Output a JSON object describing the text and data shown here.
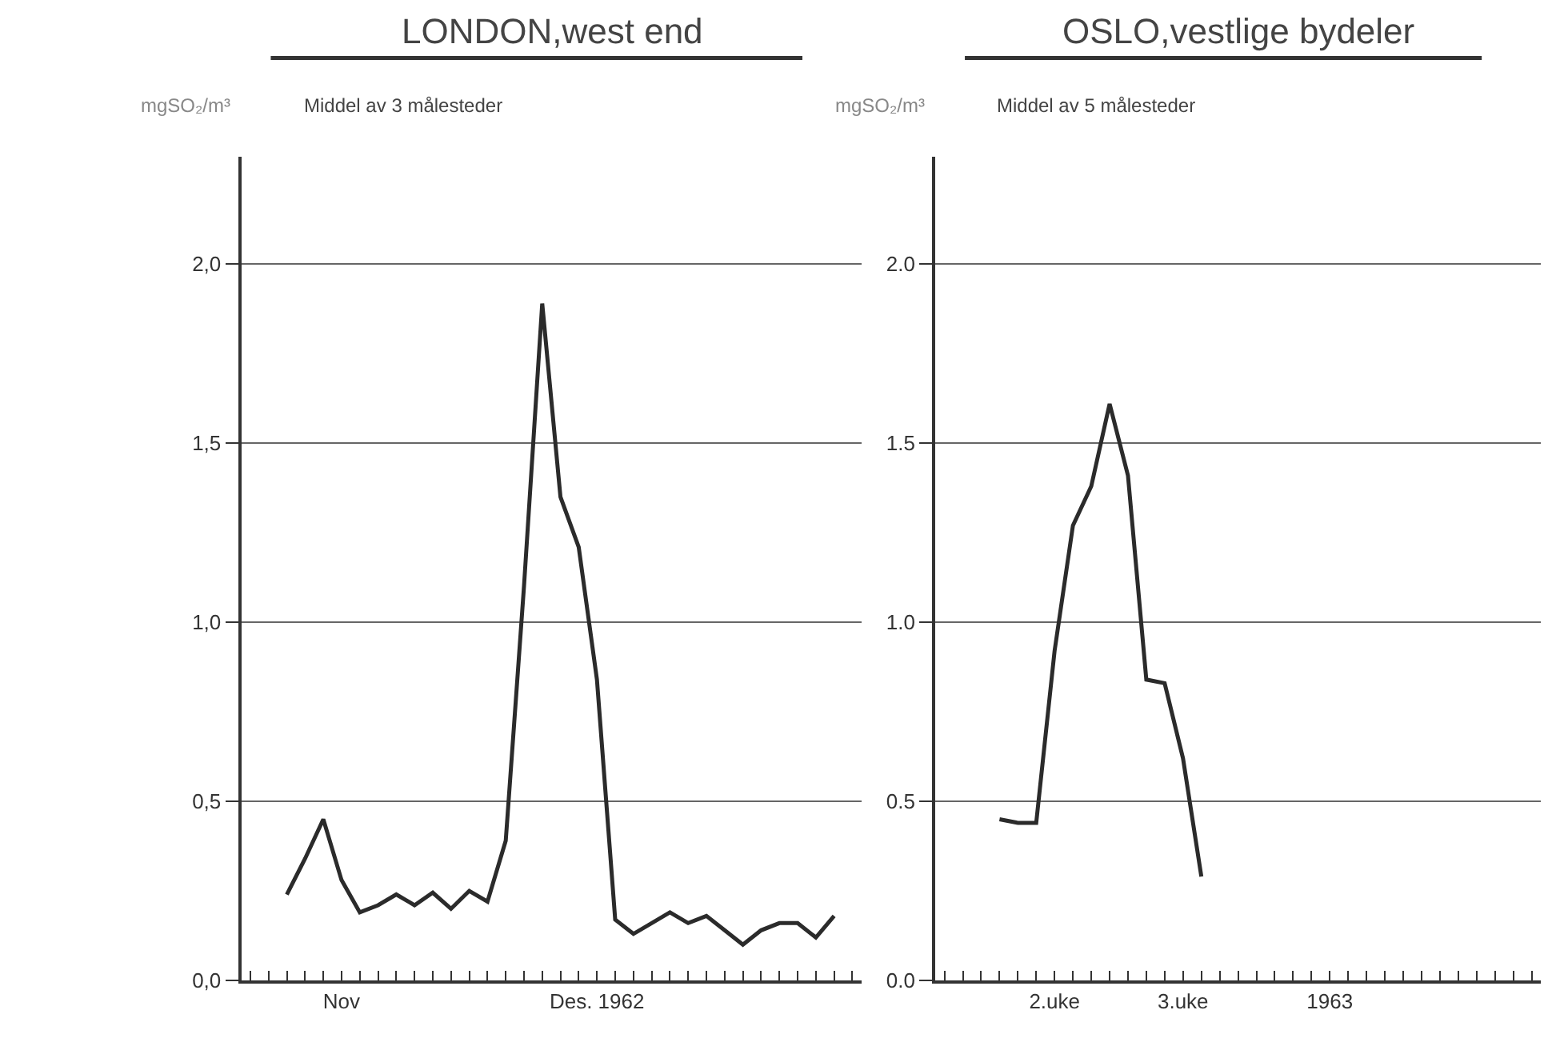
{
  "chart_data": [
    {
      "type": "line",
      "title": "LONDON,west end",
      "subtitle": "Middel av 3 målesteder",
      "ylabel": "mgSO₂/m³",
      "categories": [
        null,
        null,
        null,
        null,
        null,
        "Nov",
        null,
        null,
        null,
        null,
        null,
        null,
        null,
        null,
        null,
        null,
        null,
        null,
        null,
        "Des. 1962",
        null,
        null,
        null,
        null,
        null,
        null,
        null,
        null,
        null,
        null,
        null,
        null,
        null,
        null
      ],
      "series": [
        {
          "color": "#2b2b2b",
          "values": [
            null,
            null,
            0.24,
            0.34,
            0.45,
            0.28,
            0.19,
            0.21,
            0.24,
            0.21,
            0.245,
            0.2,
            0.25,
            0.22,
            0.39,
            1.1,
            1.89,
            1.35,
            1.21,
            0.84,
            0.17,
            0.13,
            0.16,
            0.19,
            0.16,
            0.18,
            0.14,
            0.1,
            0.14,
            0.16,
            0.16,
            0.12,
            0.18,
            null
          ]
        }
      ],
      "ylim": [
        0,
        2.3
      ],
      "yticks": [
        {
          "value": 0,
          "label": "0,0"
        },
        {
          "value": 0.5,
          "label": "0,5"
        },
        {
          "value": 1.0,
          "label": "1,0"
        },
        {
          "value": 1.5,
          "label": "1,5"
        },
        {
          "value": 2.0,
          "label": "2,0"
        }
      ],
      "grid": "y",
      "marker": "none",
      "line_style": "solid"
    },
    {
      "type": "line",
      "title": "OSLO,vestlige bydeler",
      "subtitle": "Middel av 5 målesteder",
      "ylabel": "mgSO₂/m³",
      "categories": [
        null,
        null,
        null,
        null,
        null,
        null,
        "2.uke",
        null,
        null,
        null,
        null,
        null,
        null,
        "3.uke",
        null,
        null,
        null,
        null,
        null,
        null,
        null,
        "1963",
        null,
        null,
        null,
        null,
        null,
        null,
        null,
        null,
        null,
        null,
        null
      ],
      "series": [
        {
          "color": "#2b2b2b",
          "values": [
            null,
            null,
            null,
            0.45,
            0.44,
            0.44,
            0.92,
            1.27,
            1.38,
            1.61,
            1.41,
            0.84,
            0.83,
            0.62,
            0.29,
            null,
            null,
            null,
            null,
            null,
            null,
            null,
            null,
            null,
            null,
            null,
            null,
            null,
            null,
            null,
            null,
            null,
            null
          ]
        }
      ],
      "ylim": [
        0,
        2.3
      ],
      "yticks": [
        {
          "value": 0,
          "label": "0.0"
        },
        {
          "value": 0.5,
          "label": "0.5"
        },
        {
          "value": 1.0,
          "label": "1.0"
        },
        {
          "value": 1.5,
          "label": "1.5"
        },
        {
          "value": 2.0,
          "label": "2.0"
        }
      ],
      "grid": "y",
      "marker": "none",
      "line_style": "solid"
    }
  ]
}
